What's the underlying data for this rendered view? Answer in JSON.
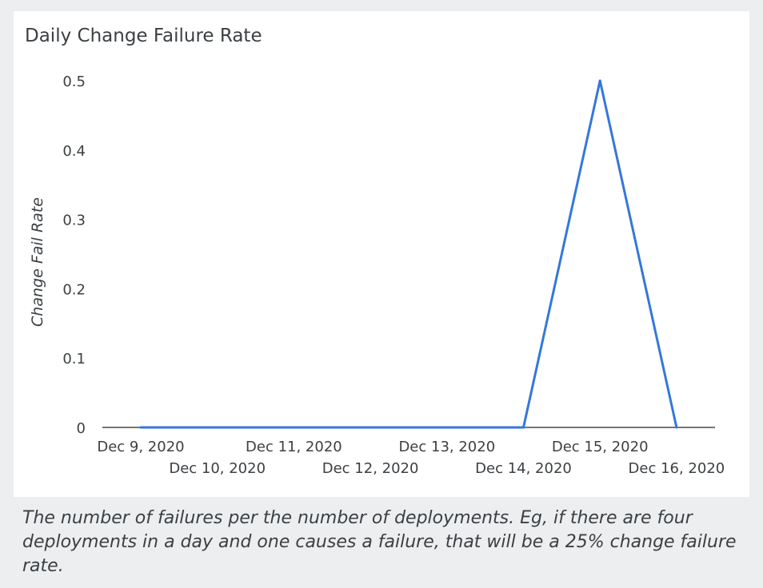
{
  "caption": "The number of failures per the number of deployments. Eg, if there are four deployments in a day and one causes a failure, that will be a 25% change failure rate.",
  "chart_data": {
    "type": "line",
    "title": "Daily Change Failure Rate",
    "xlabel": "",
    "ylabel": "Change Fail Rate",
    "categories": [
      "Dec 9, 2020",
      "Dec 10, 2020",
      "Dec 11, 2020",
      "Dec 12, 2020",
      "Dec 13, 2020",
      "Dec 14, 2020",
      "Dec 15, 2020",
      "Dec 16, 2020"
    ],
    "series": [
      {
        "values": [
          0,
          0,
          0,
          0,
          0,
          0,
          0.5,
          0
        ]
      }
    ],
    "yticks": [
      "0",
      "0.1",
      "0.2",
      "0.3",
      "0.4",
      "0.5"
    ],
    "ylim": [
      0,
      0.5
    ],
    "grid": false,
    "line_color": "#3477db"
  }
}
